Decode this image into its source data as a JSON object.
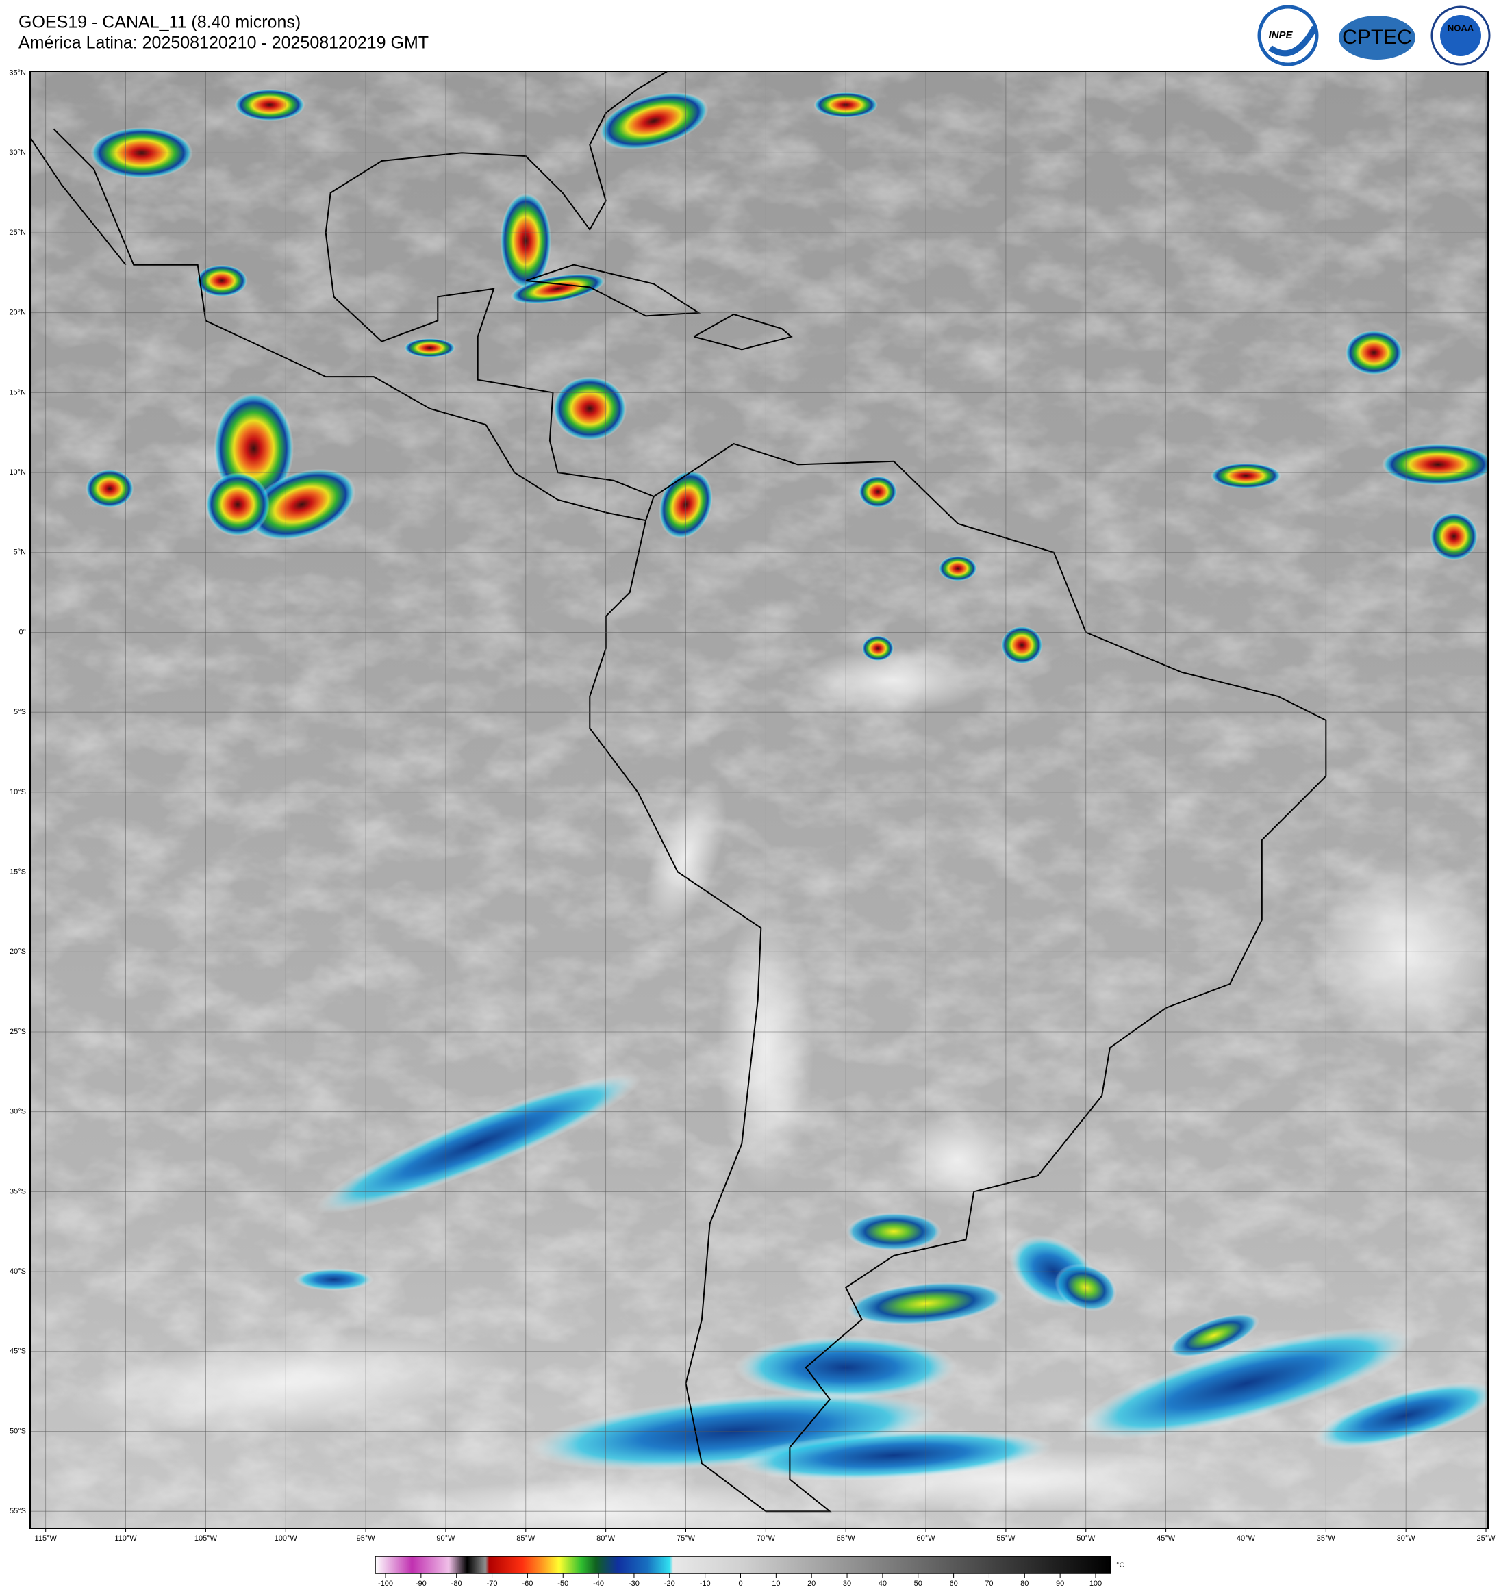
{
  "header": {
    "title": "GOES19 - CANAL_11 (8.40 microns)",
    "subtitle": "América Latina: 202508120210 - 202508120219 GMT"
  },
  "logos": [
    "INPE",
    "CPTEC",
    "NOAA"
  ],
  "map": {
    "lat_labels": [
      "35°N",
      "30°N",
      "25°N",
      "20°N",
      "15°N",
      "10°N",
      "5°N",
      "0°",
      "5°S",
      "10°S",
      "15°S",
      "20°S",
      "25°S",
      "30°S",
      "35°S",
      "40°S",
      "45°S",
      "50°S",
      "55°S"
    ],
    "lon_labels": [
      "115°W",
      "110°W",
      "105°W",
      "100°W",
      "95°W",
      "90°W",
      "85°W",
      "80°W",
      "75°W",
      "70°W",
      "65°W",
      "60°W",
      "55°W",
      "50°W",
      "45°W",
      "40°W",
      "35°W",
      "30°W",
      "25°W"
    ]
  },
  "colorbar": {
    "ticks": [
      -100,
      -90,
      -80,
      -70,
      -60,
      -50,
      -40,
      -30,
      -20,
      -10,
      0,
      10,
      20,
      30,
      40,
      50,
      60,
      70,
      80,
      90,
      100
    ],
    "unit": "°C"
  }
}
